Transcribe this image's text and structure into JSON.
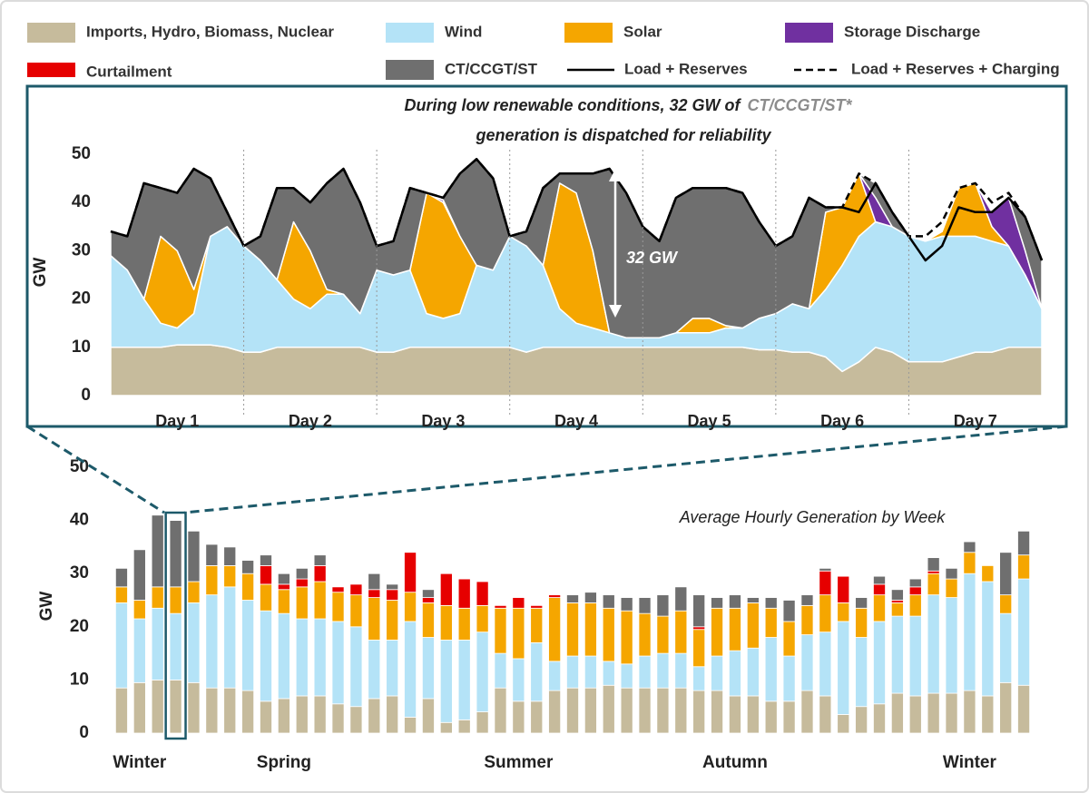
{
  "chart_data": [
    {
      "type": "area",
      "annotation": {
        "text_1": "During low renewable conditions, 32 GW of",
        "highlight": "CT/CCGT/ST*",
        "text_2": "generation is dispatched for reliability"
      },
      "callout": "32 GW",
      "ylabel": "GW",
      "periods": [
        "Day 1",
        "Day 2",
        "Day 3",
        "Day 4",
        "Day 5",
        "Day 6",
        "Day 7"
      ],
      "x": [
        0,
        3,
        6,
        9,
        12,
        15,
        18,
        21,
        24,
        27,
        30,
        33,
        36,
        39,
        42,
        45,
        48,
        51,
        54,
        57,
        60,
        63,
        66,
        69,
        72,
        75,
        78,
        81,
        84,
        87,
        90,
        93,
        96,
        99,
        102,
        105,
        108,
        111,
        114,
        117,
        120,
        123,
        126,
        129,
        132,
        135,
        138,
        141,
        144,
        147,
        150,
        153,
        156,
        159,
        162,
        165,
        168
      ],
      "xlim": [
        0,
        168
      ],
      "ylim": [
        0,
        50
      ],
      "yticks": [
        0,
        10,
        20,
        30,
        40,
        50
      ],
      "series": [
        {
          "color": "#c6bb9c",
          "values": [
            10,
            10,
            10,
            10,
            10.5,
            10.5,
            10.5,
            10,
            9,
            9,
            10,
            10,
            10,
            10,
            10,
            10,
            9,
            9,
            10,
            10,
            10,
            10,
            10,
            10,
            10,
            9,
            10,
            10,
            10,
            10,
            10,
            10,
            10,
            10,
            10,
            10,
            10,
            10,
            10,
            9.5,
            9.5,
            9,
            9,
            8,
            5,
            7,
            10,
            9,
            7,
            7,
            7,
            8,
            9,
            9,
            10,
            10,
            10
          ]
        },
        {
          "color": "#b4e3f7",
          "values": [
            19,
            16,
            10,
            5,
            3.5,
            6.5,
            22.5,
            25,
            22,
            19,
            14,
            10,
            8,
            11,
            11,
            7,
            17,
            16,
            16,
            7,
            6,
            7,
            17,
            16,
            23,
            22,
            17,
            8,
            5,
            4,
            3,
            2,
            2,
            2,
            3,
            3,
            3,
            4,
            4,
            6.5,
            7.5,
            10,
            9,
            14,
            22,
            26,
            26,
            26,
            26,
            25,
            26,
            25,
            24,
            23,
            21,
            15,
            8
          ]
        },
        {
          "color": "#f5a600",
          "values": [
            0,
            0,
            0,
            18,
            16,
            5,
            0,
            0,
            0,
            0,
            0,
            16,
            12,
            1,
            0,
            0,
            0,
            0,
            0,
            25,
            24,
            16,
            0,
            0,
            0,
            0,
            0,
            26,
            27,
            16,
            0,
            0,
            0,
            0,
            0,
            3,
            3,
            0.5,
            0,
            0,
            0,
            0,
            0,
            16,
            12,
            13,
            0,
            0,
            0,
            0,
            1,
            10,
            11,
            3,
            0,
            0,
            0
          ]
        },
        {
          "color": "#7030a0",
          "values": [
            0,
            0,
            0,
            0,
            0,
            0,
            0,
            0,
            0,
            0,
            0,
            0,
            0,
            0,
            0,
            0,
            0,
            0,
            0,
            0,
            0.5,
            0,
            0,
            0,
            0,
            0,
            0,
            0,
            0,
            0,
            0,
            0,
            0,
            0,
            0,
            0,
            0,
            0,
            0,
            0,
            0,
            0,
            0,
            0,
            0,
            0,
            5,
            0,
            0,
            0,
            0,
            0,
            0,
            3,
            10,
            5,
            0
          ]
        },
        {
          "color": "#6f6f6f",
          "values": [
            5,
            7,
            24,
            10,
            12,
            25,
            12,
            3,
            0,
            5,
            19,
            7,
            10,
            22,
            26,
            23,
            5,
            7,
            17,
            0,
            0.5,
            13,
            22,
            19,
            0,
            3,
            16,
            2,
            4,
            16,
            34,
            30,
            23,
            20,
            28,
            27,
            27,
            28.5,
            28,
            20,
            14,
            14,
            23,
            1,
            0,
            0,
            3,
            3,
            0,
            0,
            0,
            0,
            0,
            0,
            0,
            7,
            10
          ]
        }
      ],
      "lines": [
        {
          "name": "Load + Reserves",
          "color": "#000000",
          "style": "solid",
          "values": [
            34,
            33,
            44,
            43,
            42,
            47,
            45,
            38,
            31,
            33,
            43,
            43,
            40,
            44,
            47,
            40,
            31,
            32,
            43,
            42,
            41,
            46,
            49,
            45,
            33,
            34,
            43,
            46,
            46,
            46,
            47,
            42,
            35,
            32,
            41,
            43,
            43,
            43,
            42,
            36,
            31,
            33,
            41,
            39,
            39,
            38,
            44,
            38,
            33,
            28,
            31,
            39,
            38,
            38,
            41,
            37,
            28
          ]
        },
        {
          "name": "Load + Reserves + Charging",
          "color": "#000000",
          "style": "dashed",
          "values": [
            34,
            33,
            44,
            43,
            42,
            47,
            45,
            38,
            31,
            33,
            43,
            43,
            40,
            44,
            47,
            40,
            31,
            32,
            43,
            42,
            41,
            46,
            49,
            45,
            33,
            34,
            43,
            46,
            46,
            46,
            47,
            42,
            35,
            32,
            41,
            43,
            43,
            43,
            42,
            36,
            31,
            33,
            41,
            39,
            39,
            46,
            44,
            38,
            33,
            33,
            36,
            43,
            44,
            40,
            42,
            37,
            28
          ]
        }
      ]
    },
    {
      "type": "bar",
      "title": "Average Hourly Generation by Week",
      "ylabel": "GW",
      "categories": [
        null,
        "Winter",
        null,
        null,
        null,
        null,
        null,
        null,
        null,
        "Spring",
        null,
        null,
        null,
        null,
        null,
        null,
        null,
        null,
        null,
        null,
        null,
        null,
        "Summer",
        null,
        null,
        null,
        null,
        null,
        null,
        null,
        null,
        null,
        null,
        null,
        "Autumn",
        null,
        null,
        null,
        null,
        null,
        null,
        null,
        null,
        null,
        null,
        null,
        null,
        "Winter",
        null,
        null,
        null
      ],
      "ylim": [
        0,
        50
      ],
      "yticks": [
        0,
        10,
        20,
        30,
        40,
        50
      ],
      "series": [
        {
          "name": "Imports, Hydro, Biomass, Nuclear",
          "color": "#c6bb9c",
          "values": [
            8.5,
            9.5,
            10,
            10,
            9.5,
            8.5,
            8.5,
            8,
            6,
            6.5,
            7,
            7,
            5.5,
            5,
            6.5,
            7,
            3,
            6.5,
            2,
            2.5,
            4,
            8.5,
            6,
            6,
            8,
            8.5,
            8.5,
            9,
            8.5,
            8.5,
            8.5,
            8.5,
            8,
            8,
            7,
            7,
            6,
            6,
            8,
            7,
            3.5,
            5,
            5.5,
            7.5,
            7,
            7.5,
            7.5,
            8,
            7,
            9.5,
            9
          ]
        },
        {
          "name": "Wind",
          "color": "#b4e3f7",
          "values": [
            16,
            12,
            13.5,
            12.5,
            15,
            17.5,
            19,
            17,
            17,
            16,
            14.5,
            14.5,
            15.5,
            15,
            11,
            10.5,
            18,
            11.5,
            15.5,
            15,
            15,
            6.5,
            8,
            11,
            5.5,
            6,
            6,
            4.5,
            4.5,
            6,
            6.5,
            6.5,
            4.5,
            6.5,
            8.5,
            9,
            12,
            8.5,
            10.5,
            12,
            17.5,
            13,
            15.5,
            14.5,
            15,
            18.5,
            18,
            22,
            21.5,
            13,
            20
          ]
        },
        {
          "name": "Solar",
          "color": "#f5a600",
          "values": [
            3,
            3.5,
            4,
            5,
            4,
            5.5,
            4,
            5,
            5,
            4.5,
            6,
            7,
            5.5,
            6,
            8,
            7.5,
            5.5,
            6.5,
            6.5,
            6,
            5,
            8.5,
            9.5,
            6.5,
            12,
            10,
            10,
            10,
            10,
            8,
            7,
            8,
            7,
            9,
            8,
            8.5,
            5.5,
            6.5,
            5.5,
            7,
            3.5,
            5.5,
            5,
            2.5,
            4,
            4,
            3.5,
            4,
            3,
            3.5,
            4.5
          ]
        },
        {
          "name": "Storage Discharge",
          "color": "#7030a0",
          "values": [
            0,
            0,
            0,
            0,
            0,
            0,
            0,
            0,
            0,
            0,
            0,
            0,
            0,
            0,
            0,
            0,
            0,
            0,
            0,
            0,
            0,
            0,
            0,
            0,
            0,
            0,
            0,
            0,
            0,
            0,
            0,
            0,
            0,
            0,
            0,
            0,
            0,
            0,
            0,
            0,
            0,
            0,
            0,
            0,
            0,
            0,
            0,
            0,
            0,
            0,
            0
          ]
        },
        {
          "name": "Curtailment",
          "color": "#e60000",
          "values": [
            0,
            0,
            0,
            0,
            0,
            0,
            0,
            0,
            3.5,
            1,
            1.5,
            3,
            1,
            2,
            1.5,
            2,
            7.5,
            1,
            6,
            5.5,
            4.5,
            0.5,
            2,
            0.5,
            0.5,
            0,
            0,
            0,
            0,
            0,
            0,
            0,
            0.5,
            0,
            0,
            0,
            0,
            0,
            0,
            4.5,
            5,
            0,
            2,
            0.5,
            1.5,
            0.5,
            0,
            0,
            0,
            0,
            0
          ]
        },
        {
          "name": "CT/CCGT/ST",
          "color": "#6f6f6f",
          "values": [
            3.5,
            9.5,
            13.5,
            12.5,
            9.5,
            4,
            3.5,
            2.5,
            2,
            2,
            2,
            2,
            0,
            0,
            3,
            1,
            0,
            1.5,
            0,
            0,
            0,
            0,
            0,
            0,
            0,
            1.5,
            2,
            2.5,
            2.5,
            3,
            4,
            4.5,
            6,
            2,
            2.5,
            1,
            2,
            4,
            2,
            0.5,
            0,
            2,
            1.5,
            2,
            1.5,
            2.5,
            2,
            2,
            0,
            8,
            4.5
          ]
        }
      ]
    }
  ]
}
